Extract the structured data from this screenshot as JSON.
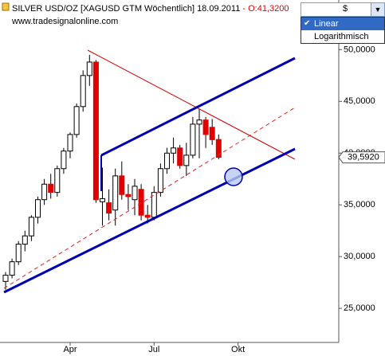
{
  "chart_data": {
    "type": "candlestick",
    "title": "SILVER USD/OZ [XAGUSD GTM  Wöchentlich] 18.09.2011",
    "open_label": "- O:41,3200",
    "watermark": "www.tradesignalonline.com",
    "categories": [
      null,
      null,
      null,
      null,
      null,
      null,
      null,
      null,
      null,
      null,
      "Apr",
      null,
      null,
      null,
      null,
      null,
      null,
      null,
      null,
      null,
      null,
      null,
      null,
      "Jul",
      null,
      null,
      null,
      null,
      null,
      null,
      null,
      null,
      null,
      null,
      null,
      null,
      "Okt"
    ],
    "open": [
      27.6,
      28.2,
      29.5,
      31.2,
      32.0,
      33.8,
      35.5,
      37.0,
      36.2,
      38.5,
      40.2,
      41.8,
      44.5,
      47.5,
      48.8,
      35.3,
      35.2,
      34.5,
      37.8,
      36.0,
      35.5,
      36.5,
      34.0,
      33.8,
      36.2,
      38.5,
      40.0,
      40.5,
      38.8,
      39.8,
      42.8,
      43.2,
      42.5,
      41.32,
      null,
      null,
      null
    ],
    "high": [
      28.5,
      29.8,
      31.5,
      32.5,
      34.0,
      35.8,
      37.5,
      38.0,
      38.8,
      40.5,
      42.0,
      44.8,
      48.0,
      49.5,
      49.0,
      38.6,
      36.5,
      38.5,
      39.2,
      37.0,
      37.5,
      37.0,
      35.0,
      36.8,
      39.0,
      40.5,
      41.5,
      40.8,
      41.0,
      43.5,
      44.3,
      43.5,
      43.3,
      41.8,
      null,
      null,
      null
    ],
    "low": [
      26.8,
      27.9,
      29.2,
      30.5,
      31.5,
      33.2,
      35.0,
      35.6,
      35.8,
      38.0,
      39.5,
      41.5,
      44.0,
      46.5,
      35.2,
      33.0,
      33.5,
      33.0,
      35.5,
      34.5,
      34.0,
      33.5,
      33.2,
      33.5,
      35.8,
      38.0,
      39.0,
      38.5,
      37.8,
      39.5,
      39.5,
      40.5,
      40.8,
      39.4,
      null,
      null,
      null
    ],
    "close": [
      28.2,
      29.5,
      31.2,
      32.0,
      33.8,
      35.5,
      37.0,
      36.2,
      38.5,
      40.2,
      41.8,
      44.5,
      47.5,
      48.8,
      35.5,
      35.6,
      34.2,
      37.8,
      36.0,
      35.8,
      36.8,
      34.0,
      33.8,
      36.2,
      38.5,
      40.0,
      40.5,
      38.8,
      39.8,
      42.8,
      43.2,
      41.8,
      41.3,
      39.592,
      null,
      null,
      null
    ],
    "up_color": "#ffffff",
    "down_color": "#e00000",
    "ylim": [
      21.7,
      54.8
    ],
    "yticks": [
      {
        "value": 25,
        "label": "25,0000"
      },
      {
        "value": 30,
        "label": "30,0000"
      },
      {
        "value": 35,
        "label": "35,0000"
      },
      {
        "value": 40,
        "label": "40,0000"
      },
      {
        "value": 45,
        "label": "45,0000"
      },
      {
        "value": 50,
        "label": "50,0000"
      }
    ],
    "last_price": {
      "value": 39.592,
      "label": "39,5920"
    }
  },
  "scale_menu": {
    "currency": "$",
    "options": [
      "Linear",
      "Logarithmisch"
    ]
  }
}
